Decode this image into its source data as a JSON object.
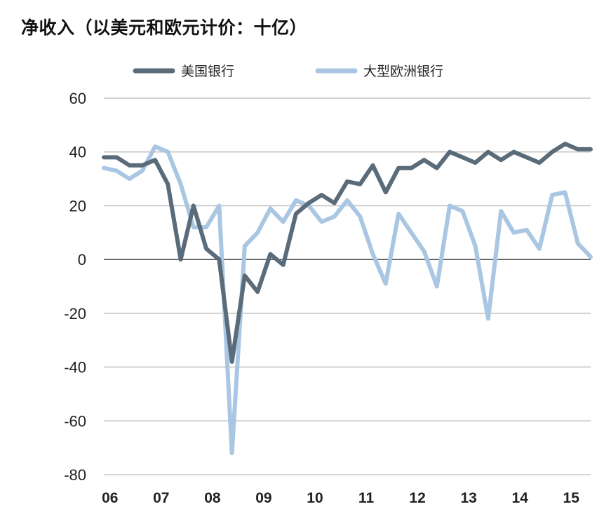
{
  "chart_data": {
    "type": "line",
    "title": "净收入（以美元和欧元计价：十亿）",
    "xlabel": "",
    "ylabel": "",
    "ylim": [
      -80,
      60
    ],
    "yticks": [
      60,
      40,
      20,
      0,
      -20,
      -40,
      -60,
      -80
    ],
    "yticks_labels": [
      "60",
      "40",
      "20",
      "0",
      "-20",
      "-40",
      "-60",
      "-80"
    ],
    "xtick_labels": [
      "06",
      "07",
      "08",
      "09",
      "10",
      "11",
      "12",
      "13",
      "14",
      "15"
    ],
    "grid": "horizontal",
    "legend_position": "top",
    "x_quarters": [
      2006.0,
      2006.25,
      2006.5,
      2006.75,
      2007.0,
      2007.25,
      2007.5,
      2007.75,
      2008.0,
      2008.25,
      2008.5,
      2008.75,
      2009.0,
      2009.25,
      2009.5,
      2009.75,
      2010.0,
      2010.25,
      2010.5,
      2010.75,
      2011.0,
      2011.25,
      2011.5,
      2011.75,
      2012.0,
      2012.25,
      2012.5,
      2012.75,
      2013.0,
      2013.25,
      2013.5,
      2013.75,
      2014.0,
      2014.25,
      2014.5,
      2014.75,
      2015.0,
      2015.25,
      2015.5
    ],
    "series": [
      {
        "name": "美国银行",
        "color": "#5a6b7a",
        "values": [
          38,
          38,
          35,
          35,
          37,
          28,
          0,
          20,
          4,
          0,
          -38,
          -6,
          -12,
          2,
          -2,
          17,
          21,
          24,
          21,
          29,
          28,
          35,
          25,
          34,
          34,
          37,
          34,
          40,
          38,
          36,
          40,
          37,
          40,
          38,
          36,
          40,
          43,
          41,
          41
        ]
      },
      {
        "name": "大型欧洲银行",
        "color": "#a9c6e2",
        "values": [
          34,
          33,
          30,
          33,
          42,
          40,
          28,
          12,
          12,
          20,
          -72,
          5,
          10,
          19,
          14,
          22,
          20,
          14,
          16,
          22,
          16,
          2,
          -9,
          17,
          10,
          3,
          -10,
          20,
          18,
          5,
          -22,
          18,
          10,
          11,
          4,
          24,
          25,
          6,
          1
        ]
      }
    ]
  }
}
